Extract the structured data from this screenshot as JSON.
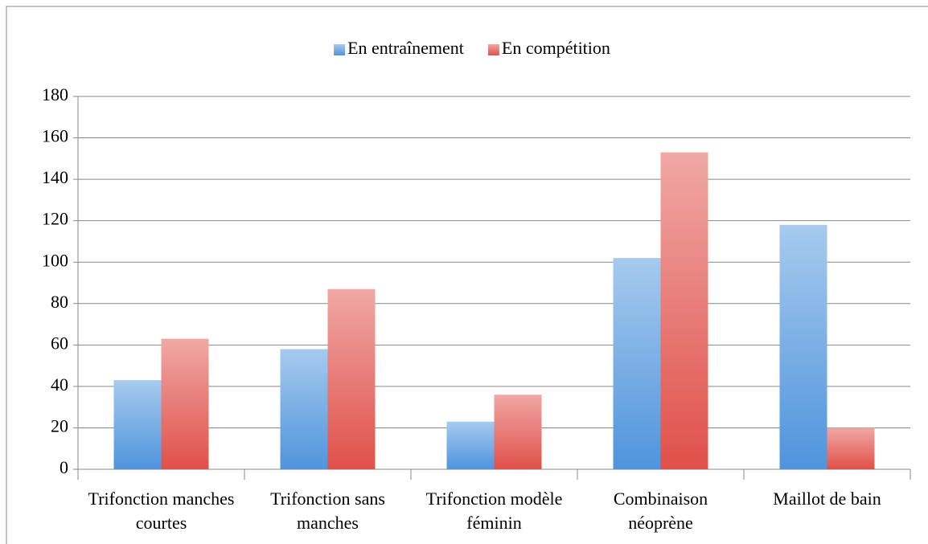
{
  "chart_data": {
    "type": "bar",
    "categories": [
      "Trifonction manches courtes",
      "Trifonction sans manches",
      "Trifonction modèle féminin",
      "Combinaison néoprène",
      "Maillot de bain"
    ],
    "series": [
      {
        "name": "En entraînement",
        "color": "#4f94dc",
        "values": [
          43,
          58,
          23,
          102,
          118
        ]
      },
      {
        "name": "En compétition",
        "color": "#e0504a",
        "values": [
          63,
          87,
          36,
          153,
          20
        ]
      }
    ],
    "ylim": [
      0,
      180
    ],
    "yticks": [
      0,
      20,
      40,
      60,
      80,
      100,
      120,
      140,
      160,
      180
    ],
    "grid": true,
    "legend": "top"
  }
}
